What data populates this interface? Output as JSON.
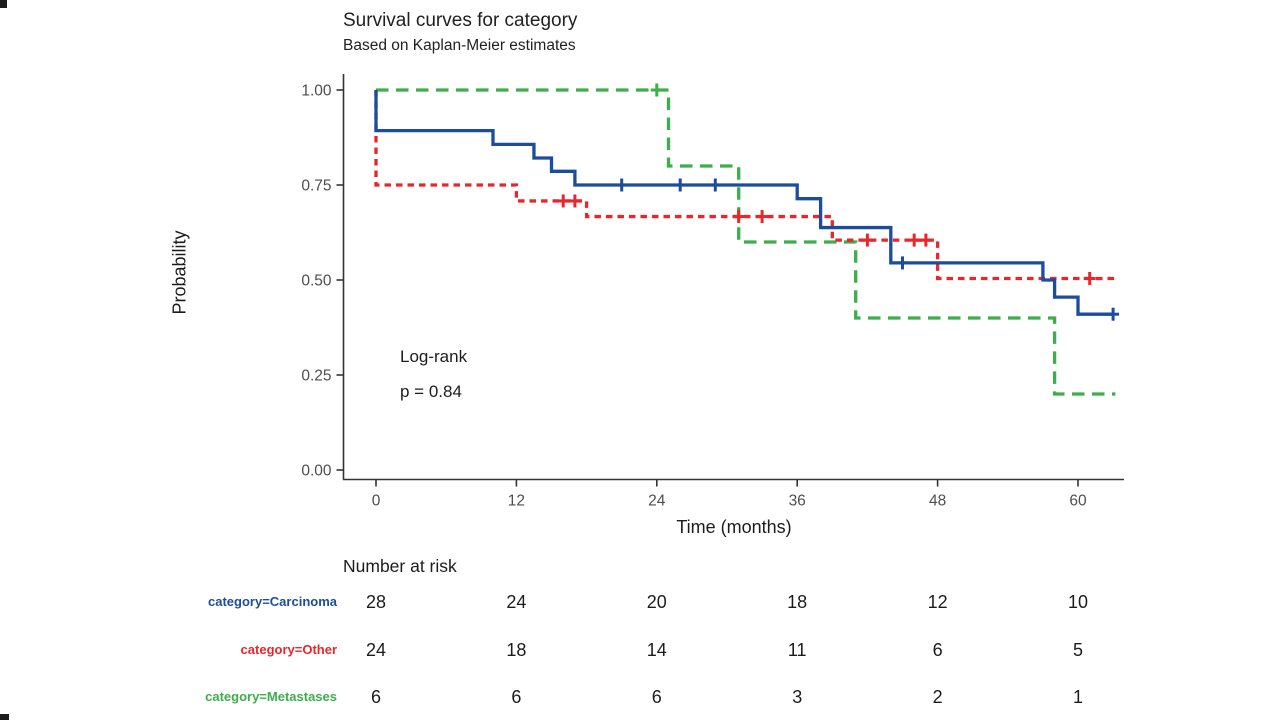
{
  "header": {
    "title": "Survival curves for category",
    "subtitle": "Based on Kaplan-Meier estimates"
  },
  "chart_data": {
    "type": "line",
    "variant": "kaplan-meier-step",
    "title": "Survival curves for category",
    "subtitle": "Based on Kaplan-Meier estimates",
    "xlabel": "Time (months)",
    "ylabel": "Probability",
    "xlim": [
      0,
      64
    ],
    "ylim": [
      0.0,
      1.0
    ],
    "xticks": [
      0,
      12,
      24,
      36,
      48,
      60
    ],
    "yticks": [
      1.0,
      0.75,
      0.5,
      0.25,
      0.0
    ],
    "grid": "off",
    "legend": "none (series identified in risk table)",
    "pvalue_label": "Log-rank",
    "pvalue": "p = 0.84",
    "series": [
      {
        "name": "category=Carcinoma",
        "color": "#1c4d9c",
        "line_style": "solid",
        "steps": [
          [
            0,
            1.0
          ],
          [
            0,
            0.893
          ],
          [
            10,
            0.857
          ],
          [
            13.5,
            0.821
          ],
          [
            15,
            0.786
          ],
          [
            17,
            0.75
          ],
          [
            36,
            0.714
          ],
          [
            38,
            0.638
          ],
          [
            44,
            0.545
          ],
          [
            57,
            0.5
          ],
          [
            58,
            0.455
          ],
          [
            60,
            0.41
          ],
          [
            63,
            0.41
          ]
        ],
        "censor_marks": [
          [
            21,
            0.75
          ],
          [
            26,
            0.75
          ],
          [
            29,
            0.75
          ],
          [
            45,
            0.545
          ],
          [
            63,
            0.41
          ]
        ]
      },
      {
        "name": "category=Other",
        "color": "#e8262b",
        "line_style": "dashed-short",
        "steps": [
          [
            0,
            1.0
          ],
          [
            0,
            0.75
          ],
          [
            12,
            0.708
          ],
          [
            18,
            0.667
          ],
          [
            39,
            0.605
          ],
          [
            48,
            0.504
          ],
          [
            63.5,
            0.504
          ]
        ],
        "censor_marks": [
          [
            16,
            0.708
          ],
          [
            17,
            0.708
          ],
          [
            31,
            0.667
          ],
          [
            33,
            0.667
          ],
          [
            42,
            0.605
          ],
          [
            46,
            0.605
          ],
          [
            47,
            0.605
          ],
          [
            61,
            0.504
          ]
        ]
      },
      {
        "name": "category=Metastases",
        "color": "#3cae4a",
        "line_style": "dashed-long",
        "steps": [
          [
            0,
            1.0
          ],
          [
            25,
            0.8
          ],
          [
            31,
            0.6
          ],
          [
            41,
            0.4
          ],
          [
            58,
            0.2
          ],
          [
            63.2,
            0.2
          ]
        ],
        "censor_marks": [
          [
            24,
            1.0
          ]
        ]
      }
    ]
  },
  "risk_table": {
    "title": "Number at risk",
    "times": [
      0,
      12,
      24,
      36,
      48,
      60
    ],
    "rows": [
      {
        "label": "category=Carcinoma",
        "color": "#1c4d9c",
        "values": [
          28,
          24,
          20,
          18,
          12,
          10
        ]
      },
      {
        "label": "category=Other",
        "color": "#e8262b",
        "values": [
          24,
          18,
          14,
          11,
          6,
          5
        ]
      },
      {
        "label": "category=Metastases",
        "color": "#3cae4a",
        "values": [
          6,
          6,
          6,
          3,
          2,
          1
        ]
      }
    ]
  },
  "style": {
    "axis_color": "#333333",
    "tick_label_color": "#4e4e4e",
    "text_color": "#1c1c1c"
  }
}
